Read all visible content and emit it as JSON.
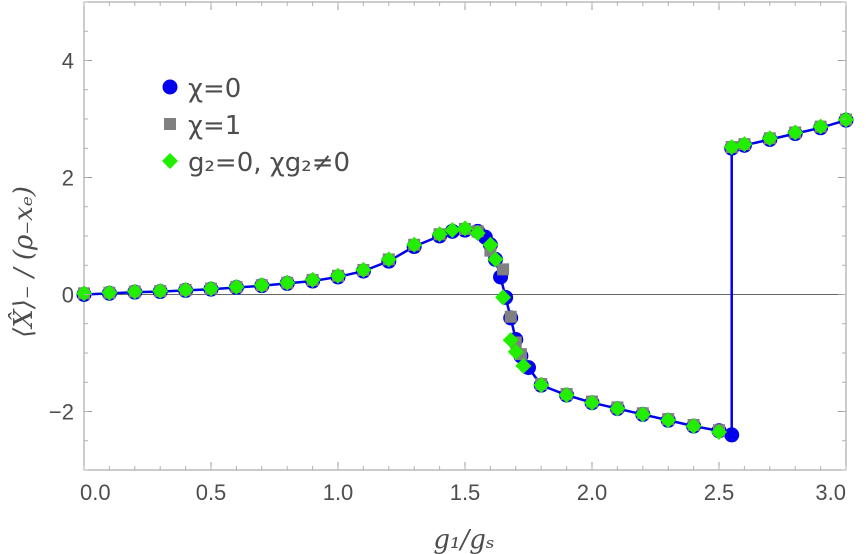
{
  "chart_data": {
    "type": "scatter",
    "title": "",
    "xlabel": "g₁/gₛ",
    "ylabel": "⟨X̂⟩₋ / (ρ₋xₑ)",
    "xlim": [
      0.0,
      3.0
    ],
    "ylim": [
      -3.0,
      5.0
    ],
    "x_ticks": [
      {
        "value": 0.0,
        "label": "0.0"
      },
      {
        "value": 0.5,
        "label": "0.5"
      },
      {
        "value": 1.0,
        "label": "1.0"
      },
      {
        "value": 1.5,
        "label": "1.5"
      },
      {
        "value": 2.0,
        "label": "2.0"
      },
      {
        "value": 2.5,
        "label": "2.5"
      },
      {
        "value": 3.0,
        "label": "3.0"
      }
    ],
    "y_ticks": [
      {
        "value": -2,
        "label": "−2"
      },
      {
        "value": 0,
        "label": "0"
      },
      {
        "value": 2,
        "label": "2"
      },
      {
        "value": 4,
        "label": "4"
      }
    ],
    "zero_line": true,
    "grid": false,
    "legend_position": "top-left",
    "series": [
      {
        "name": "χ=0",
        "marker": "circle",
        "color": "#0000ee",
        "line": true,
        "x": [
          0.0,
          0.1,
          0.2,
          0.3,
          0.4,
          0.5,
          0.6,
          0.7,
          0.8,
          0.9,
          1.0,
          1.1,
          1.2,
          1.3,
          1.4,
          1.45,
          1.5,
          1.55,
          1.58,
          1.6,
          1.62,
          1.64,
          1.66,
          1.68,
          1.7,
          1.72,
          1.75,
          1.8,
          1.9,
          2.0,
          2.1,
          2.2,
          2.3,
          2.4,
          2.5,
          2.55,
          2.55,
          2.6,
          2.7,
          2.8,
          2.9,
          3.0
        ],
        "y": [
          0.0,
          0.02,
          0.04,
          0.05,
          0.07,
          0.09,
          0.12,
          0.15,
          0.19,
          0.23,
          0.3,
          0.4,
          0.57,
          0.82,
          1.0,
          1.08,
          1.1,
          1.08,
          0.98,
          0.85,
          0.6,
          0.3,
          -0.05,
          -0.4,
          -0.77,
          -1.05,
          -1.25,
          -1.55,
          -1.72,
          -1.85,
          -1.95,
          -2.05,
          -2.15,
          -2.25,
          -2.33,
          -2.4,
          2.5,
          2.55,
          2.65,
          2.75,
          2.85,
          2.98
        ]
      },
      {
        "name": "χ=1",
        "marker": "square",
        "color": "#808080",
        "line": false,
        "x": [
          0.0,
          0.1,
          0.2,
          0.3,
          0.4,
          0.5,
          0.6,
          0.7,
          0.8,
          0.9,
          1.0,
          1.1,
          1.2,
          1.3,
          1.4,
          1.5,
          1.55,
          1.6,
          1.65,
          1.68,
          1.7,
          1.72,
          1.8,
          1.9,
          2.0,
          2.1,
          2.2,
          2.3,
          2.4,
          2.5,
          2.55,
          2.6,
          2.7,
          2.8,
          2.9,
          3.0
        ],
        "y": [
          0.02,
          0.03,
          0.05,
          0.06,
          0.08,
          0.1,
          0.13,
          0.16,
          0.2,
          0.25,
          0.32,
          0.42,
          0.6,
          0.85,
          1.03,
          1.12,
          1.08,
          0.75,
          0.43,
          -0.38,
          -0.82,
          -1.02,
          -1.53,
          -1.7,
          -1.83,
          -1.93,
          -2.03,
          -2.13,
          -2.23,
          -2.32,
          2.52,
          2.57,
          2.67,
          2.77,
          2.87,
          2.99
        ]
      },
      {
        "name": "g₂=0,  χg₂≠0",
        "marker": "diamond",
        "color": "#22ee00",
        "line": false,
        "x": [
          0.0,
          0.1,
          0.2,
          0.3,
          0.4,
          0.5,
          0.6,
          0.7,
          0.8,
          0.9,
          1.0,
          1.1,
          1.2,
          1.3,
          1.4,
          1.45,
          1.5,
          1.55,
          1.6,
          1.62,
          1.65,
          1.68,
          1.7,
          1.73,
          1.8,
          1.9,
          2.0,
          2.1,
          2.2,
          2.3,
          2.4,
          2.5,
          2.55,
          2.6,
          2.7,
          2.8,
          2.9,
          3.0
        ],
        "y": [
          0.02,
          0.03,
          0.05,
          0.06,
          0.08,
          0.1,
          0.13,
          0.16,
          0.2,
          0.25,
          0.32,
          0.42,
          0.6,
          0.85,
          1.03,
          1.1,
          1.13,
          1.05,
          0.85,
          0.6,
          -0.05,
          -0.78,
          -0.98,
          -1.22,
          -1.55,
          -1.72,
          -1.85,
          -1.95,
          -2.05,
          -2.15,
          -2.25,
          -2.35,
          2.52,
          2.57,
          2.67,
          2.77,
          2.87,
          2.99
        ]
      }
    ]
  }
}
